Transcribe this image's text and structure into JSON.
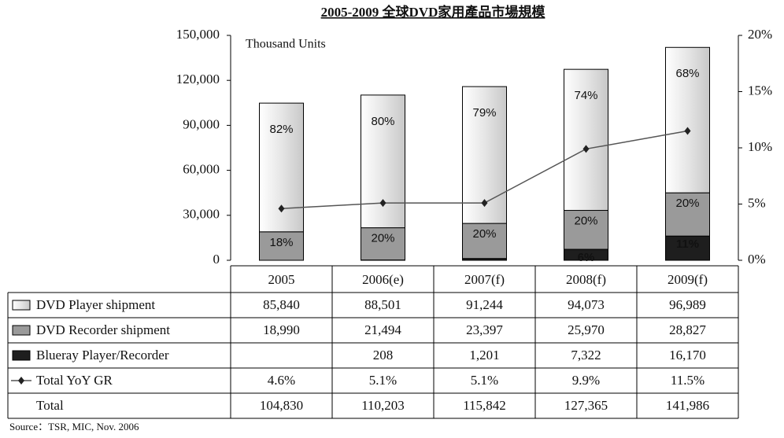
{
  "chart_data": {
    "type": "bar",
    "title": "2005-2009 全球DVD家用產品市場規模",
    "annotation": "Thousand Units",
    "source": "Source：TSR, MIC, Nov. 2006",
    "categories": [
      "2005",
      "2006(e)",
      "2007(f)",
      "2008(f)",
      "2009(f)"
    ],
    "stacked": true,
    "series": [
      {
        "name": "DVD Player shipment",
        "type": "bar",
        "color": "#e6e6e6",
        "values": [
          85840,
          88501,
          91244,
          94073,
          96989
        ],
        "value_labels": [
          "85,840",
          "88,501",
          "91,244",
          "94,073",
          "96,989"
        ],
        "share_labels": [
          "82%",
          "80%",
          "79%",
          "74%",
          "68%"
        ]
      },
      {
        "name": "DVD Recorder shipment",
        "type": "bar",
        "color": "#9a9a9a",
        "values": [
          18990,
          21494,
          23397,
          25970,
          28827
        ],
        "value_labels": [
          "18,990",
          "21,494",
          "23,397",
          "25,970",
          "28,827"
        ],
        "share_labels": [
          "18%",
          "20%",
          "20%",
          "20%",
          "20%"
        ]
      },
      {
        "name": "Blueray Player/Recorder",
        "type": "bar",
        "color": "#1e1e1e",
        "values": [
          null,
          208,
          1201,
          7322,
          16170
        ],
        "value_labels": [
          null,
          "208",
          "1,201",
          "7,322",
          "16,170"
        ],
        "share_labels": [
          null,
          null,
          null,
          "6%",
          "11%"
        ]
      },
      {
        "name": "Total YoY GR",
        "type": "line",
        "axis": "y2",
        "color": "#555555",
        "values": [
          4.6,
          5.1,
          5.1,
          9.9,
          11.5
        ],
        "value_labels": [
          "4.6%",
          "5.1%",
          "5.1%",
          "9.9%",
          "11.5%"
        ]
      }
    ],
    "totals": {
      "name": "Total",
      "values": [
        104830,
        110203,
        115842,
        127365,
        141986
      ],
      "value_labels": [
        "104,830",
        "110,203",
        "115,842",
        "127,365",
        "141,986"
      ]
    },
    "ylim": [
      0,
      150000
    ],
    "yticks": [
      0,
      {
        "value": 30000,
        "label": "30,000"
      },
      {
        "value": 60000,
        "label": "60,000"
      },
      {
        "value": 90000,
        "label": "90,000"
      },
      {
        "value": 120000,
        "label": "120,000"
      },
      {
        "value": 150000,
        "label": "150,000"
      }
    ],
    "y2lim": [
      0,
      20
    ],
    "y2ticks": [
      {
        "value": 0,
        "label": "0%"
      },
      {
        "value": 5,
        "label": "5%"
      },
      {
        "value": 10,
        "label": "10%"
      },
      {
        "value": 15,
        "label": "15%"
      },
      {
        "value": 20,
        "label": "20%"
      }
    ],
    "grid": false
  }
}
